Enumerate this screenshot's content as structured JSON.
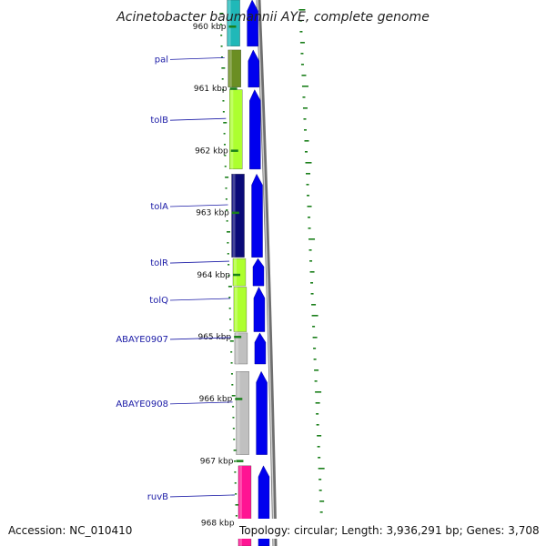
{
  "title": "Acinetobacter baumannii AYE, complete genome",
  "footer": {
    "accession": "Accession: NC_010410",
    "topology": "Topology: circular; Length: 3,936,291 bp; Genes: 3,708"
  },
  "axis": {
    "unit": "kbp",
    "ticks": [
      {
        "kbp": 960,
        "label": "960 kbp"
      },
      {
        "kbp": 961,
        "label": "961 kbp"
      },
      {
        "kbp": 962,
        "label": "962 kbp"
      },
      {
        "kbp": 963,
        "label": "963 kbp"
      },
      {
        "kbp": 964,
        "label": "964 kbp"
      },
      {
        "kbp": 965,
        "label": "965 kbp"
      },
      {
        "kbp": 966,
        "label": "966 kbp"
      },
      {
        "kbp": 967,
        "label": "967 kbp"
      },
      {
        "kbp": 968,
        "label": "968 kbp"
      }
    ]
  },
  "genes": [
    {
      "name": "",
      "start": 959.4,
      "end": 960.32,
      "color": "#20b8b8"
    },
    {
      "name": "pal",
      "start": 960.38,
      "end": 960.98,
      "color": "#6b8e23"
    },
    {
      "name": "tolB",
      "start": 961.02,
      "end": 962.3,
      "color": "#adff2f"
    },
    {
      "name": "tolA",
      "start": 962.38,
      "end": 963.72,
      "color": "#0a0a78"
    },
    {
      "name": "tolR",
      "start": 963.74,
      "end": 964.18,
      "color": "#adff2f"
    },
    {
      "name": "tolQ",
      "start": 964.2,
      "end": 964.92,
      "color": "#adff2f"
    },
    {
      "name": "ABAYE0907",
      "start": 964.94,
      "end": 965.44,
      "color": "#c0c0c0"
    },
    {
      "name": "ABAYE0908",
      "start": 965.56,
      "end": 966.9,
      "color": "#c0c0c0"
    },
    {
      "name": "ruvB",
      "start": 967.08,
      "end": 968.4,
      "color": "#ff1493"
    }
  ],
  "colors": {
    "cds_track": "#0000ee",
    "backbone": "#8c8c8c",
    "gc_skew": "#1a7f1a",
    "tick": "#1a7f1a",
    "label_line": "#1a1aa6"
  }
}
